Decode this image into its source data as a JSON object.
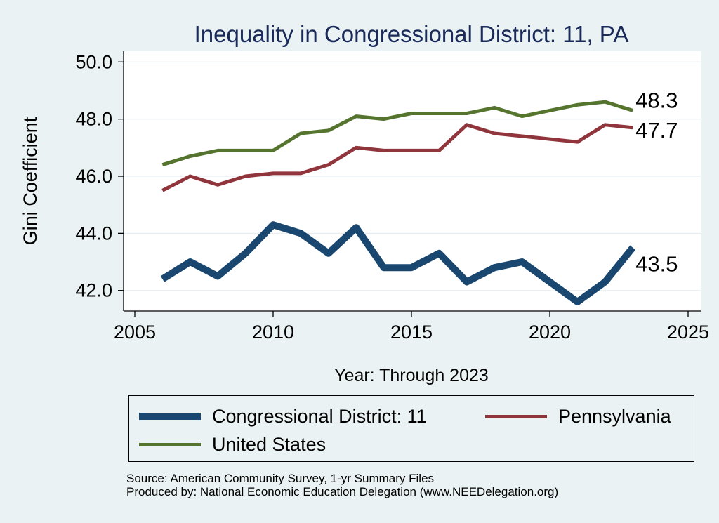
{
  "chart_data": {
    "type": "line",
    "title": "Inequality in Congressional District:  11, PA",
    "xlabel": "Year: Through 2023",
    "ylabel": "Gini Coefficient",
    "xlim": [
      2005,
      2025
    ],
    "ylim": [
      41.6,
      50.4
    ],
    "xticks": [
      2005,
      2010,
      2015,
      2020,
      2025
    ],
    "yticks": [
      42.0,
      44.0,
      46.0,
      48.0,
      50.0
    ],
    "ytick_labels": [
      "42.0",
      "44.0",
      "46.0",
      "48.0",
      "50.0"
    ],
    "grid": true,
    "legend_position": "bottom",
    "x": [
      2006,
      2007,
      2008,
      2009,
      2010,
      2011,
      2012,
      2013,
      2014,
      2015,
      2016,
      2017,
      2018,
      2019,
      2020,
      2021,
      2022,
      2023
    ],
    "series": [
      {
        "name": "Congressional District:  11",
        "color": "#1a476f",
        "values": [
          42.4,
          43.0,
          42.5,
          43.3,
          44.3,
          44.0,
          43.3,
          44.2,
          42.8,
          42.8,
          43.3,
          42.3,
          42.8,
          43.0,
          42.3,
          41.6,
          42.3,
          43.5
        ],
        "end_label": "43.5"
      },
      {
        "name": "Pennsylvania",
        "color": "#90353b",
        "values": [
          45.5,
          46.0,
          45.7,
          46.0,
          46.1,
          46.1,
          46.4,
          47.0,
          46.9,
          46.9,
          46.9,
          47.8,
          47.5,
          47.4,
          47.3,
          47.2,
          47.8,
          47.7
        ],
        "end_label": "47.7"
      },
      {
        "name": "United States",
        "color": "#55752f",
        "values": [
          46.4,
          46.7,
          46.9,
          46.9,
          46.9,
          47.5,
          47.6,
          48.1,
          48.0,
          48.2,
          48.2,
          48.2,
          48.4,
          48.1,
          48.3,
          48.5,
          48.6,
          48.3
        ],
        "end_label": "48.3"
      }
    ]
  },
  "footer": {
    "source": "Source: American Community Survey, 1-yr Summary Files",
    "produced_by": "Produced by: National Economic Education Delegation (www.NEEDelegation.org)"
  }
}
